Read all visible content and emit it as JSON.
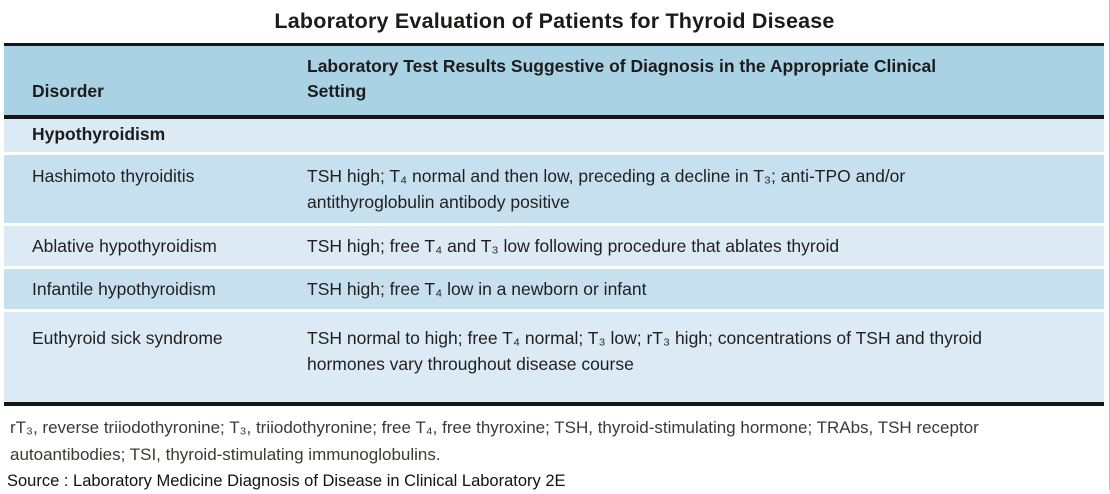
{
  "title": "Laboratory Evaluation of Patients for Thyroid Disease",
  "table": {
    "columns": {
      "disorder": "Disorder",
      "results": "Laboratory Test Results Suggestive of Diagnosis in the Appropriate Clinical Setting"
    },
    "section": "Hypothyroidism",
    "rows": [
      {
        "disorder": "Hashimoto thyroiditis",
        "result": "TSH high; T₄ normal and then low, preceding a decline in T₃; anti-TPO and/or antithyroglobulin antibody positive"
      },
      {
        "disorder": "Ablative hypothyroidism",
        "result": "TSH high; free T₄ and T₃ low following procedure that ablates thyroid"
      },
      {
        "disorder": "Infantile hypothyroidism",
        "result": "TSH high; free T₄ low in a newborn or infant"
      },
      {
        "disorder": "Euthyroid sick syndrome",
        "result": "TSH normal to high; free T₄ normal; T₃ low; rT₃ high; concentrations of TSH and thyroid hormones vary throughout disease course"
      }
    ]
  },
  "footnote": "rT₃, reverse triiodothyronine; T₃, triiodothyronine; free T₄, free thyroxine; TSH, thyroid-stimulating hormone; TRAbs, TSH receptor autoantibodies; TSI, thyroid-stimulating immunoglobulins.",
  "source": "Source : Laboratory Medicine Diagnosis of Disease in Clinical Laboratory 2E",
  "colors": {
    "header_bg": "#aad2e5",
    "row_light": "#dbeaf4",
    "row_dark": "#c6e0ef",
    "rule_black": "#161616",
    "footnote_text": "#3d3935"
  }
}
